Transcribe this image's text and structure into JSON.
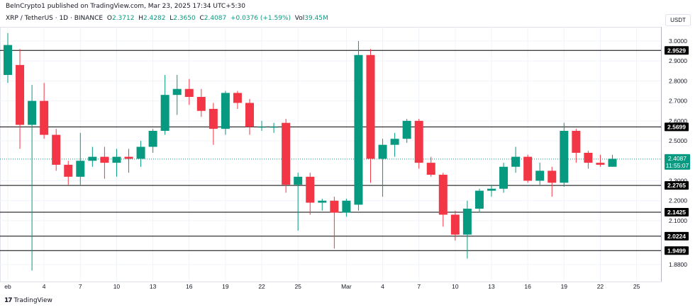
{
  "header": {
    "published": "BeInCrypto1 published on TradingView.com, Mar 23, 2025 17:34 UTC+5:30"
  },
  "symbol": {
    "name": "XRP / TetherUS · 1D · BINANCE",
    "o_label": "O",
    "o": "2.3712",
    "h_label": "H",
    "h": "2.4282",
    "l_label": "L",
    "l": "2.3650",
    "c_label": "C",
    "c": "2.4087",
    "change": "+0.0376 (+1.59%)",
    "vol_label": "Vol",
    "vol": "39.45M"
  },
  "currency": "USDT",
  "footer": {
    "logo": "TradingView"
  },
  "colors": {
    "up": "#089981",
    "down": "#f23645",
    "last_price_bg": "#089981"
  },
  "chart_data": {
    "type": "candlestick",
    "ylim": [
      1.84,
      3.04
    ],
    "y_ticks": [
      {
        "v": 3.0,
        "label": "3.0000"
      },
      {
        "v": 2.9,
        "label": "2.9000"
      },
      {
        "v": 2.8,
        "label": "2.8000"
      },
      {
        "v": 2.7,
        "label": "2.7000"
      },
      {
        "v": 2.6,
        "label": "2.6000"
      },
      {
        "v": 2.5,
        "label": "2.5000"
      },
      {
        "v": 2.3,
        "label": "2.3000"
      },
      {
        "v": 2.2,
        "label": "2.2000"
      },
      {
        "v": 2.1,
        "label": "2.1000"
      },
      {
        "v": 1.88,
        "label": "1.8800"
      }
    ],
    "x_ticks": [
      {
        "i": 0,
        "label": "eb"
      },
      {
        "i": 3,
        "label": "4"
      },
      {
        "i": 6,
        "label": "7"
      },
      {
        "i": 9,
        "label": "10"
      },
      {
        "i": 12,
        "label": "13"
      },
      {
        "i": 15,
        "label": "16"
      },
      {
        "i": 18,
        "label": "19"
      },
      {
        "i": 21,
        "label": "22"
      },
      {
        "i": 24,
        "label": "25"
      },
      {
        "i": 28,
        "label": "Mar"
      },
      {
        "i": 31,
        "label": "4"
      },
      {
        "i": 34,
        "label": "7"
      },
      {
        "i": 37,
        "label": "10"
      },
      {
        "i": 40,
        "label": "13"
      },
      {
        "i": 43,
        "label": "16"
      },
      {
        "i": 46,
        "label": "19"
      },
      {
        "i": 49,
        "label": "22"
      },
      {
        "i": 52,
        "label": "25"
      }
    ],
    "horizontal_levels": [
      {
        "v": 2.9529,
        "label": "2.9529"
      },
      {
        "v": 2.5699,
        "label": "2.5699"
      },
      {
        "v": 2.2765,
        "label": "2.2765"
      },
      {
        "v": 2.1425,
        "label": "2.1425"
      },
      {
        "v": 2.0224,
        "label": "2.0224"
      },
      {
        "v": 1.9499,
        "label": "1.9499"
      }
    ],
    "last_price": {
      "v": 2.4087,
      "label": "2.4087",
      "countdown": "11:55:07"
    },
    "candles": [
      {
        "o": 2.83,
        "h": 3.04,
        "l": 2.79,
        "c": 2.98
      },
      {
        "o": 2.88,
        "h": 2.96,
        "l": 2.46,
        "c": 2.58
      },
      {
        "o": 2.58,
        "h": 2.78,
        "l": 1.85,
        "c": 2.7
      },
      {
        "o": 2.7,
        "h": 2.79,
        "l": 2.51,
        "c": 2.53
      },
      {
        "o": 2.53,
        "h": 2.56,
        "l": 2.35,
        "c": 2.38
      },
      {
        "o": 2.38,
        "h": 2.4,
        "l": 2.28,
        "c": 2.32
      },
      {
        "o": 2.32,
        "h": 2.54,
        "l": 2.28,
        "c": 2.4
      },
      {
        "o": 2.4,
        "h": 2.47,
        "l": 2.37,
        "c": 2.42
      },
      {
        "o": 2.42,
        "h": 2.47,
        "l": 2.31,
        "c": 2.39
      },
      {
        "o": 2.39,
        "h": 2.46,
        "l": 2.32,
        "c": 2.42
      },
      {
        "o": 2.42,
        "h": 2.46,
        "l": 2.34,
        "c": 2.41
      },
      {
        "o": 2.41,
        "h": 2.5,
        "l": 2.37,
        "c": 2.47
      },
      {
        "o": 2.47,
        "h": 2.56,
        "l": 2.44,
        "c": 2.55
      },
      {
        "o": 2.55,
        "h": 2.83,
        "l": 2.53,
        "c": 2.73
      },
      {
        "o": 2.73,
        "h": 2.83,
        "l": 2.63,
        "c": 2.76
      },
      {
        "o": 2.76,
        "h": 2.81,
        "l": 2.68,
        "c": 2.72
      },
      {
        "o": 2.72,
        "h": 2.76,
        "l": 2.62,
        "c": 2.65
      },
      {
        "o": 2.66,
        "h": 2.69,
        "l": 2.48,
        "c": 2.56
      },
      {
        "o": 2.56,
        "h": 2.75,
        "l": 2.53,
        "c": 2.74
      },
      {
        "o": 2.74,
        "h": 2.75,
        "l": 2.66,
        "c": 2.69
      },
      {
        "o": 2.69,
        "h": 2.71,
        "l": 2.53,
        "c": 2.57
      },
      {
        "o": 2.57,
        "h": 2.6,
        "l": 2.55,
        "c": 2.57
      },
      {
        "o": 2.57,
        "h": 2.59,
        "l": 2.54,
        "c": 2.57
      },
      {
        "o": 2.59,
        "h": 2.61,
        "l": 2.24,
        "c": 2.28
      },
      {
        "o": 2.28,
        "h": 2.34,
        "l": 2.05,
        "c": 2.32
      },
      {
        "o": 2.32,
        "h": 2.34,
        "l": 2.13,
        "c": 2.19
      },
      {
        "o": 2.19,
        "h": 2.21,
        "l": 2.15,
        "c": 2.2
      },
      {
        "o": 2.2,
        "h": 2.22,
        "l": 1.96,
        "c": 2.14
      },
      {
        "o": 2.14,
        "h": 2.21,
        "l": 2.12,
        "c": 2.2
      },
      {
        "o": 2.18,
        "h": 3.0,
        "l": 2.15,
        "c": 2.93
      },
      {
        "o": 2.93,
        "h": 2.96,
        "l": 2.29,
        "c": 2.41
      },
      {
        "o": 2.41,
        "h": 2.51,
        "l": 2.22,
        "c": 2.48
      },
      {
        "o": 2.48,
        "h": 2.54,
        "l": 2.42,
        "c": 2.51
      },
      {
        "o": 2.51,
        "h": 2.61,
        "l": 2.49,
        "c": 2.6
      },
      {
        "o": 2.6,
        "h": 2.61,
        "l": 2.36,
        "c": 2.39
      },
      {
        "o": 2.39,
        "h": 2.42,
        "l": 2.32,
        "c": 2.33
      },
      {
        "o": 2.33,
        "h": 2.34,
        "l": 2.07,
        "c": 2.13
      },
      {
        "o": 2.13,
        "h": 2.15,
        "l": 2.0,
        "c": 2.03
      },
      {
        "o": 2.03,
        "h": 2.2,
        "l": 1.91,
        "c": 2.16
      },
      {
        "o": 2.16,
        "h": 2.26,
        "l": 2.14,
        "c": 2.25
      },
      {
        "o": 2.25,
        "h": 2.28,
        "l": 2.22,
        "c": 2.26
      },
      {
        "o": 2.26,
        "h": 2.39,
        "l": 2.24,
        "c": 2.37
      },
      {
        "o": 2.37,
        "h": 2.47,
        "l": 2.34,
        "c": 2.42
      },
      {
        "o": 2.42,
        "h": 2.43,
        "l": 2.29,
        "c": 2.3
      },
      {
        "o": 2.3,
        "h": 2.39,
        "l": 2.28,
        "c": 2.35
      },
      {
        "o": 2.35,
        "h": 2.37,
        "l": 2.22,
        "c": 2.29
      },
      {
        "o": 2.29,
        "h": 2.59,
        "l": 2.27,
        "c": 2.55
      },
      {
        "o": 2.55,
        "h": 2.56,
        "l": 2.39,
        "c": 2.44
      },
      {
        "o": 2.44,
        "h": 2.45,
        "l": 2.36,
        "c": 2.39
      },
      {
        "o": 2.39,
        "h": 2.43,
        "l": 2.37,
        "c": 2.38
      },
      {
        "o": 2.37,
        "h": 2.43,
        "l": 2.37,
        "c": 2.41
      }
    ]
  }
}
